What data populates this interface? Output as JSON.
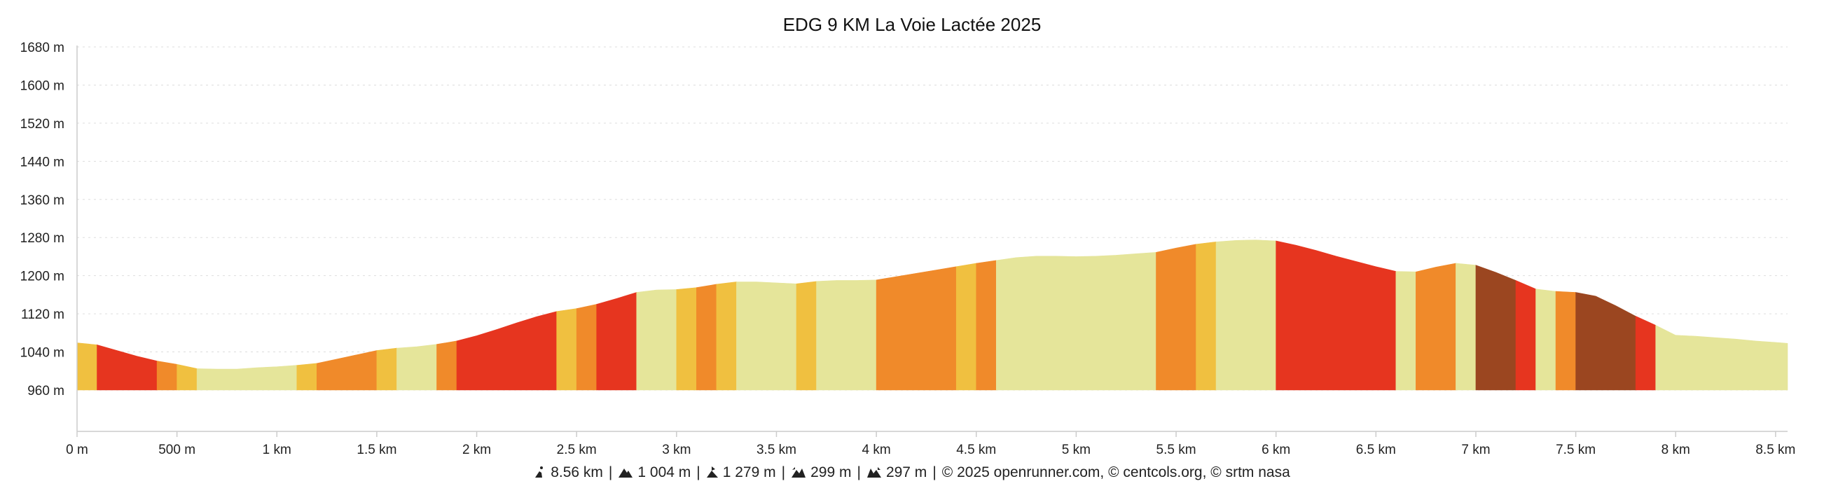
{
  "chart_data": {
    "type": "area",
    "title": "EDG 9 KM La Voie Lactée 2025",
    "xlabel": "",
    "ylabel": "",
    "ylim": [
      960,
      1680
    ],
    "xlim": [
      0,
      8.56
    ],
    "grid": true,
    "y_ticks": [
      {
        "value": 960,
        "label": "960 m"
      },
      {
        "value": 1040,
        "label": "1040 m"
      },
      {
        "value": 1120,
        "label": "1120 m"
      },
      {
        "value": 1200,
        "label": "1200 m"
      },
      {
        "value": 1280,
        "label": "1280 m"
      },
      {
        "value": 1360,
        "label": "1360 m"
      },
      {
        "value": 1440,
        "label": "1440 m"
      },
      {
        "value": 1520,
        "label": "1520 m"
      },
      {
        "value": 1600,
        "label": "1600 m"
      },
      {
        "value": 1680,
        "label": "1680 m"
      }
    ],
    "x_ticks": [
      {
        "value": 0,
        "label": "0 m"
      },
      {
        "value": 0.5,
        "label": "500 m"
      },
      {
        "value": 1,
        "label": "1 km"
      },
      {
        "value": 1.5,
        "label": "1.5 km"
      },
      {
        "value": 2,
        "label": "2 km"
      },
      {
        "value": 2.5,
        "label": "2.5 km"
      },
      {
        "value": 3,
        "label": "3 km"
      },
      {
        "value": 3.5,
        "label": "3.5 km"
      },
      {
        "value": 4,
        "label": "4 km"
      },
      {
        "value": 4.5,
        "label": "4.5 km"
      },
      {
        "value": 5,
        "label": "5 km"
      },
      {
        "value": 5.5,
        "label": "5.5 km"
      },
      {
        "value": 6,
        "label": "6 km"
      },
      {
        "value": 6.5,
        "label": "6.5 km"
      },
      {
        "value": 7,
        "label": "7 km"
      },
      {
        "value": 7.5,
        "label": "7.5 km"
      },
      {
        "value": 8,
        "label": "8 km"
      },
      {
        "value": 8.5,
        "label": "8.5 km"
      }
    ],
    "profile": {
      "x": [
        0,
        0.1,
        0.2,
        0.3,
        0.4,
        0.5,
        0.6,
        0.7,
        0.8,
        0.9,
        1.0,
        1.1,
        1.2,
        1.3,
        1.4,
        1.5,
        1.6,
        1.7,
        1.8,
        1.9,
        2.0,
        2.1,
        2.2,
        2.3,
        2.4,
        2.5,
        2.6,
        2.7,
        2.8,
        2.9,
        3.0,
        3.1,
        3.2,
        3.3,
        3.4,
        3.5,
        3.6,
        3.7,
        3.8,
        3.9,
        4.0,
        4.1,
        4.2,
        4.3,
        4.4,
        4.5,
        4.6,
        4.7,
        4.8,
        4.9,
        5.0,
        5.1,
        5.2,
        5.3,
        5.4,
        5.5,
        5.6,
        5.7,
        5.8,
        5.9,
        6.0,
        6.1,
        6.2,
        6.3,
        6.4,
        6.5,
        6.6,
        6.7,
        6.8,
        6.9,
        7.0,
        7.1,
        7.2,
        7.3,
        7.4,
        7.5,
        7.6,
        7.7,
        7.8,
        7.9,
        8.0,
        8.1,
        8.2,
        8.3,
        8.4,
        8.5,
        8.56
      ],
      "y": [
        1059,
        1055,
        1043,
        1031,
        1021,
        1014,
        1005,
        1004,
        1004,
        1007,
        1009,
        1012,
        1016,
        1025,
        1034,
        1043,
        1048,
        1051,
        1056,
        1063,
        1074,
        1087,
        1101,
        1114,
        1125,
        1131,
        1140,
        1152,
        1165,
        1170,
        1171,
        1175,
        1182,
        1187,
        1187,
        1185,
        1183,
        1188,
        1190,
        1190,
        1191,
        1198,
        1205,
        1212,
        1219,
        1226,
        1232,
        1238,
        1241,
        1241,
        1240,
        1241,
        1243,
        1246,
        1249,
        1258,
        1266,
        1271,
        1274,
        1275,
        1273,
        1264,
        1253,
        1241,
        1230,
        1219,
        1209,
        1208,
        1218,
        1226,
        1222,
        1207,
        1190,
        1172,
        1167,
        1165,
        1157,
        1137,
        1115,
        1096,
        1075,
        1073,
        1070,
        1067,
        1063,
        1060,
        1058
      ]
    },
    "gradient_segments": [
      {
        "from": 0,
        "to": 0.1,
        "color": "#f0c040"
      },
      {
        "from": 0.1,
        "to": 0.4,
        "color": "#e6351f"
      },
      {
        "from": 0.4,
        "to": 0.5,
        "color": "#f08a2a"
      },
      {
        "from": 0.5,
        "to": 0.6,
        "color": "#f0c040"
      },
      {
        "from": 0.6,
        "to": 1.1,
        "color": "#e5e59a"
      },
      {
        "from": 1.1,
        "to": 1.2,
        "color": "#f0c040"
      },
      {
        "from": 1.2,
        "to": 1.5,
        "color": "#f08a2a"
      },
      {
        "from": 1.5,
        "to": 1.6,
        "color": "#f0c040"
      },
      {
        "from": 1.6,
        "to": 1.8,
        "color": "#e5e59a"
      },
      {
        "from": 1.8,
        "to": 1.9,
        "color": "#f08a2a"
      },
      {
        "from": 1.9,
        "to": 2.4,
        "color": "#e6351f"
      },
      {
        "from": 2.4,
        "to": 2.5,
        "color": "#f0c040"
      },
      {
        "from": 2.5,
        "to": 2.6,
        "color": "#f08a2a"
      },
      {
        "from": 2.6,
        "to": 2.8,
        "color": "#e6351f"
      },
      {
        "from": 2.8,
        "to": 3.0,
        "color": "#e5e59a"
      },
      {
        "from": 3.0,
        "to": 3.1,
        "color": "#f0c040"
      },
      {
        "from": 3.1,
        "to": 3.2,
        "color": "#f08a2a"
      },
      {
        "from": 3.2,
        "to": 3.3,
        "color": "#f0c040"
      },
      {
        "from": 3.3,
        "to": 3.6,
        "color": "#e5e59a"
      },
      {
        "from": 3.6,
        "to": 3.7,
        "color": "#f0c040"
      },
      {
        "from": 3.7,
        "to": 4.0,
        "color": "#e5e59a"
      },
      {
        "from": 4.0,
        "to": 4.4,
        "color": "#f08a2a"
      },
      {
        "from": 4.4,
        "to": 4.5,
        "color": "#f0c040"
      },
      {
        "from": 4.5,
        "to": 4.6,
        "color": "#f08a2a"
      },
      {
        "from": 4.6,
        "to": 5.4,
        "color": "#e5e59a"
      },
      {
        "from": 5.4,
        "to": 5.6,
        "color": "#f08a2a"
      },
      {
        "from": 5.6,
        "to": 5.7,
        "color": "#f0c040"
      },
      {
        "from": 5.7,
        "to": 6.0,
        "color": "#e5e59a"
      },
      {
        "from": 6.0,
        "to": 6.6,
        "color": "#e6351f"
      },
      {
        "from": 6.6,
        "to": 6.7,
        "color": "#e5e59a"
      },
      {
        "from": 6.7,
        "to": 6.9,
        "color": "#f08a2a"
      },
      {
        "from": 6.9,
        "to": 7.0,
        "color": "#e5e59a"
      },
      {
        "from": 7.0,
        "to": 7.2,
        "color": "#9b4620"
      },
      {
        "from": 7.2,
        "to": 7.3,
        "color": "#e6351f"
      },
      {
        "from": 7.3,
        "to": 7.4,
        "color": "#e5e59a"
      },
      {
        "from": 7.4,
        "to": 7.5,
        "color": "#f08a2a"
      },
      {
        "from": 7.5,
        "to": 7.8,
        "color": "#9b4620"
      },
      {
        "from": 7.8,
        "to": 7.9,
        "color": "#e6351f"
      },
      {
        "from": 7.9,
        "to": 8.56,
        "color": "#e5e59a"
      }
    ]
  },
  "footer": {
    "distance": "8.56 km",
    "ascent": "1 004 m",
    "max_altitude": "1 279 m",
    "elevation_gain": "299 m",
    "elevation_loss": "297 m",
    "credits": "© 2025 openrunner.com, © centcols.org, © srtm nasa",
    "separator": "|"
  },
  "colors": {
    "text": "#222222",
    "grid": "#dddddd",
    "axis": "#cccccc"
  }
}
